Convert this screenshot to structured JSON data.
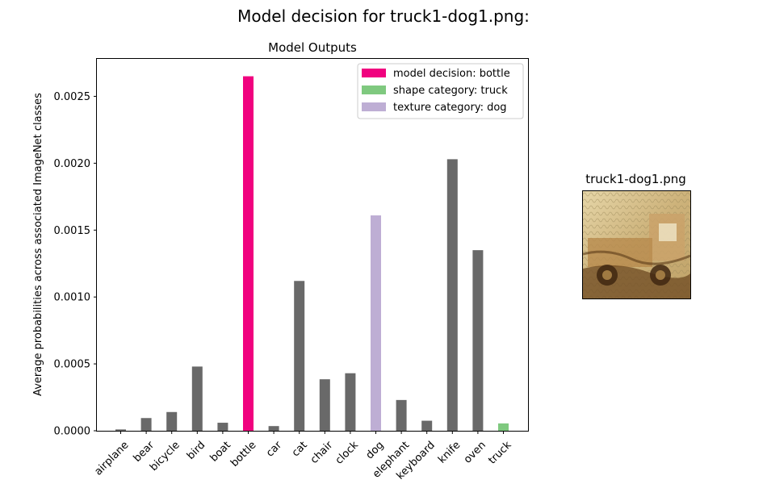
{
  "figure": {
    "suptitle": "Model decision for truck1-dog1.png:"
  },
  "chart_data": {
    "type": "bar",
    "title": "Model Outputs",
    "xlabel": "",
    "ylabel": "Average probabilities across associated ImageNet classes",
    "ylim": [
      0,
      0.00278
    ],
    "yticks": [
      "0.0000",
      "0.0005",
      "0.0010",
      "0.0015",
      "0.0020",
      "0.0025"
    ],
    "ytick_values": [
      0,
      0.0005,
      0.001,
      0.0015,
      0.002,
      0.0025
    ],
    "grid": false,
    "legend_position": "top-right",
    "categories": [
      "airplane",
      "bear",
      "bicycle",
      "bird",
      "boat",
      "bottle",
      "car",
      "cat",
      "chair",
      "clock",
      "dog",
      "elephant",
      "keyboard",
      "knife",
      "oven",
      "truck"
    ],
    "values": [
      1e-05,
      9.5e-05,
      0.00014,
      0.00048,
      6e-05,
      0.00265,
      3.5e-05,
      0.00112,
      0.000385,
      0.00043,
      0.00161,
      0.00023,
      7.5e-05,
      0.00203,
      0.00135,
      5.5e-05
    ],
    "bar_roles": [
      "other",
      "other",
      "other",
      "other",
      "other",
      "decision",
      "other",
      "other",
      "other",
      "other",
      "texture",
      "other",
      "other",
      "other",
      "other",
      "shape"
    ],
    "colors": {
      "other": "#696969",
      "decision": "#f0027f",
      "shape": "#7fc97f",
      "texture": "#beaed4"
    },
    "legend": [
      {
        "label": "model decision: bottle",
        "role": "decision"
      },
      {
        "label": "shape category: truck",
        "role": "shape"
      },
      {
        "label": "texture category: dog",
        "role": "texture"
      }
    ]
  },
  "image_panel": {
    "title": "truck1-dog1.png"
  }
}
